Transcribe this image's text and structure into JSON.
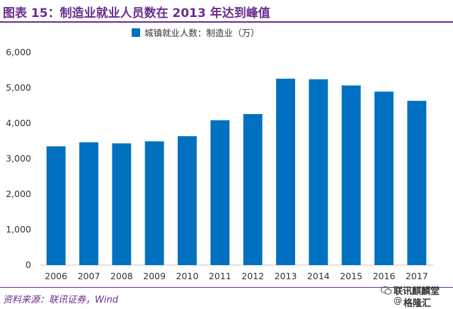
{
  "header": {
    "title": "图表 15：制造业就业人员数在 2013 年达到峰值"
  },
  "footer": {
    "source": "资料来源：联讯证券，Wind"
  },
  "watermark": {
    "line1": "联讯麒麟堂",
    "line2": "格隆汇",
    "symbol": "@"
  },
  "colors": {
    "bar": "#0070c0",
    "accent": "#6a2d8c",
    "axis": "#d9d9d9",
    "text": "#333333"
  },
  "chart_data": {
    "type": "bar",
    "categories": [
      "2006",
      "2007",
      "2008",
      "2009",
      "2010",
      "2011",
      "2012",
      "2013",
      "2014",
      "2015",
      "2016",
      "2017"
    ],
    "series": [
      {
        "name": "城镇就业人数：制造业（万）",
        "values": [
          3351,
          3465,
          3434,
          3492,
          3637,
          4088,
          4262,
          5258,
          5243,
          5069,
          4894,
          4635
        ]
      }
    ],
    "yticks": [
      "0",
      "1,000",
      "2,000",
      "3,000",
      "4,000",
      "5,000",
      "6,000"
    ],
    "ylim": [
      0,
      6000
    ],
    "grid": false,
    "legend_position": "top-center"
  }
}
